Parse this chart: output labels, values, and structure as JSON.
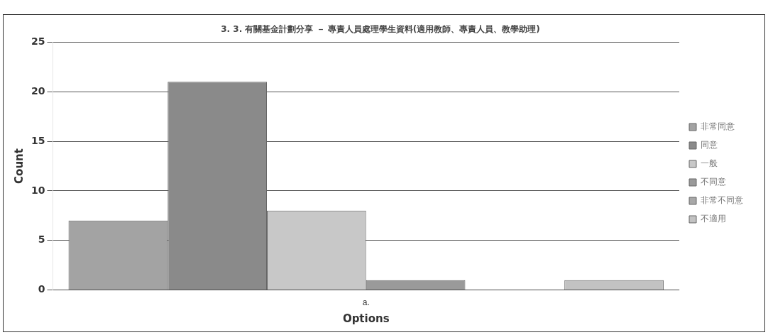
{
  "chart_data": {
    "type": "bar",
    "title": "3. 3. 有關基金計劃分享 － 專責人員處理學生資料(適用教師、專責人員、教學助理)",
    "xlabel": "Options",
    "ylabel": "Count",
    "categories": [
      "a."
    ],
    "series": [
      {
        "name": "非常同意",
        "color": "#a3a3a3",
        "values": [
          7
        ]
      },
      {
        "name": "同意",
        "color": "#8a8a8a",
        "values": [
          21
        ]
      },
      {
        "name": "一般",
        "color": "#c8c8c8",
        "values": [
          8
        ]
      },
      {
        "name": "不同意",
        "color": "#9a9a9a",
        "values": [
          1
        ]
      },
      {
        "name": "非常不同意",
        "color": "#a8a8a8",
        "values": [
          0
        ]
      },
      {
        "name": "不適用",
        "color": "#c2c2c2",
        "values": [
          1
        ]
      }
    ],
    "ylim": [
      0,
      25
    ],
    "yticks": [
      0,
      5,
      10,
      15,
      20,
      25
    ],
    "grid": "y",
    "legend": "right"
  }
}
